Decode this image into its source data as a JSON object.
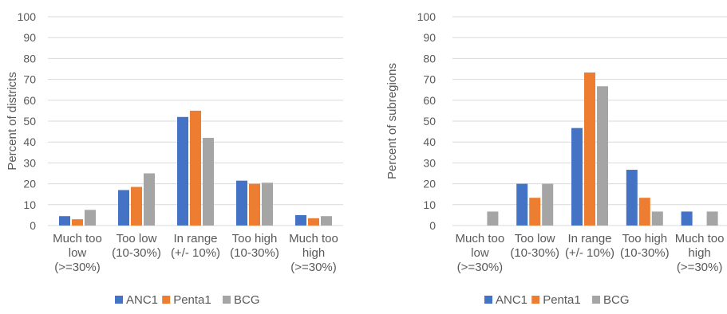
{
  "colors": {
    "ANC1": "#4472C4",
    "Penta1": "#ED7D31",
    "BCG": "#A5A5A5",
    "grid": "#D9D9D9",
    "text": "#595959"
  },
  "chart_data": [
    {
      "type": "bar",
      "ylabel": "Percent of districts",
      "ylim": [
        0,
        100
      ],
      "yticks": [
        0,
        10,
        20,
        30,
        40,
        50,
        60,
        70,
        80,
        90,
        100
      ],
      "grid": true,
      "legend": "bottom",
      "categories": [
        [
          "Much too",
          "low",
          "(>=30%)"
        ],
        [
          "Too low",
          "(10-30%)"
        ],
        [
          "In range",
          "(+/- 10%)"
        ],
        [
          "Too high",
          "(10-30%)"
        ],
        [
          "Much too",
          "high",
          "(>=30%)"
        ]
      ],
      "series": [
        {
          "name": "ANC1",
          "values": [
            4.5,
            17,
            52,
            21.5,
            5
          ]
        },
        {
          "name": "Penta1",
          "values": [
            3,
            18.5,
            55,
            20,
            3.5
          ]
        },
        {
          "name": "BCG",
          "values": [
            7.5,
            25,
            42,
            20.5,
            4.5
          ]
        }
      ]
    },
    {
      "type": "bar",
      "ylabel": "Percent of subregions",
      "ylim": [
        0,
        100
      ],
      "yticks": [
        0,
        10,
        20,
        30,
        40,
        50,
        60,
        70,
        80,
        90,
        100
      ],
      "grid": true,
      "legend": "bottom",
      "categories": [
        [
          "Much too",
          "low",
          "(>=30%)"
        ],
        [
          "Too low",
          "(10-30%)"
        ],
        [
          "In range",
          "(+/- 10%)"
        ],
        [
          "Too high",
          "(10-30%)"
        ],
        [
          "Much too",
          "high",
          "(>=30%)"
        ]
      ],
      "series": [
        {
          "name": "ANC1",
          "values": [
            0,
            20,
            46.7,
            26.7,
            6.7
          ]
        },
        {
          "name": "Penta1",
          "values": [
            0,
            13.3,
            73.3,
            13.3,
            0
          ]
        },
        {
          "name": "BCG",
          "values": [
            6.7,
            20,
            66.7,
            6.7,
            6.7
          ]
        }
      ]
    }
  ]
}
